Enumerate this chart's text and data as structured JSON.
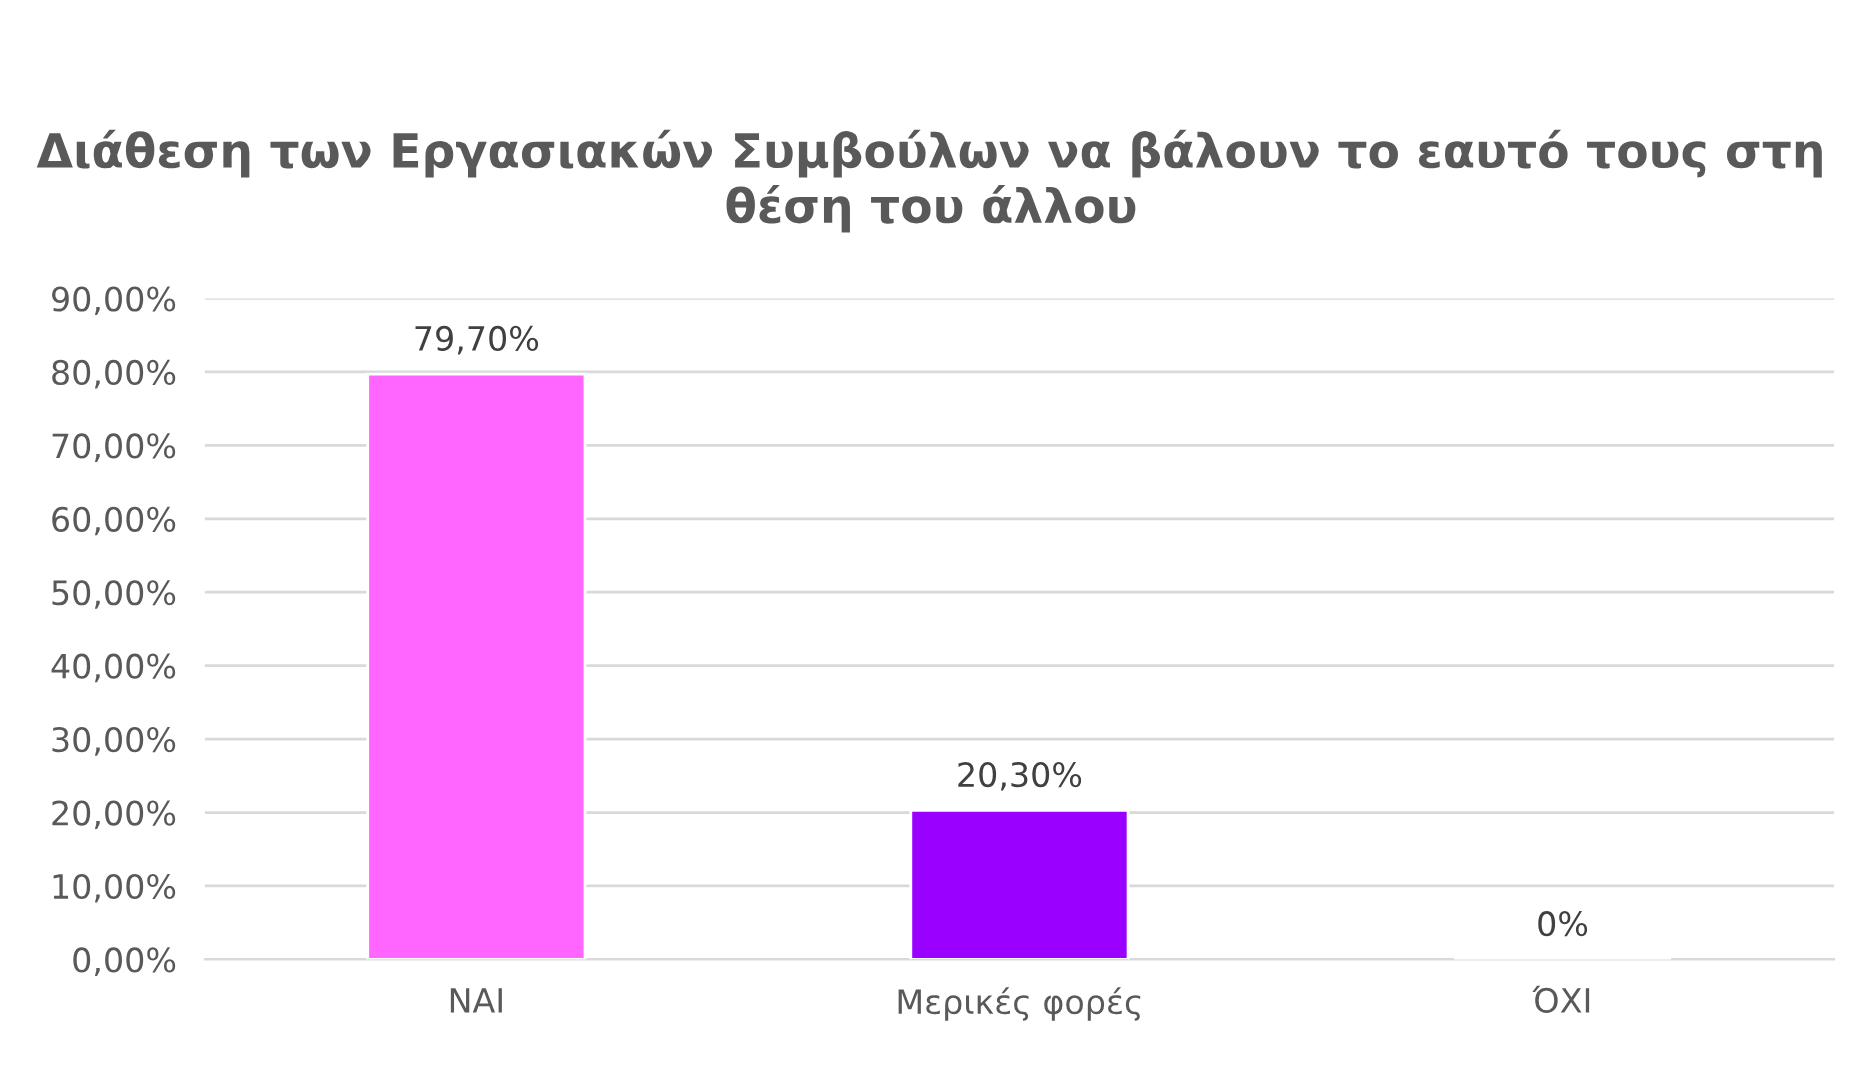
{
  "chart_data": {
    "type": "bar",
    "title": "Διάθεση των Εργασιακών Συμβούλων να βάλουν το εαυτό τους στη θέση του άλλου",
    "categories": [
      "ΝΑΙ",
      "Μερικές φορές",
      "ΌΧΙ"
    ],
    "values": [
      79.7,
      20.3,
      0
    ],
    "value_labels": [
      "79,70%",
      "20,30%",
      "0%"
    ],
    "colors": [
      "#ff66ff",
      "#9900ff",
      null
    ],
    "ylim": [
      0,
      90
    ],
    "yticks": [
      {
        "value": 0,
        "label": "0,00%"
      },
      {
        "value": 10,
        "label": "10,00%"
      },
      {
        "value": 20,
        "label": "20,00%"
      },
      {
        "value": 30,
        "label": "30,00%"
      },
      {
        "value": 40,
        "label": "40,00%"
      },
      {
        "value": 50,
        "label": "50,00%"
      },
      {
        "value": 60,
        "label": "60,00%"
      },
      {
        "value": 70,
        "label": "70,00%"
      },
      {
        "value": 80,
        "label": "80,00%"
      },
      {
        "value": 90,
        "label": "90,00%"
      }
    ],
    "grid": "y"
  }
}
